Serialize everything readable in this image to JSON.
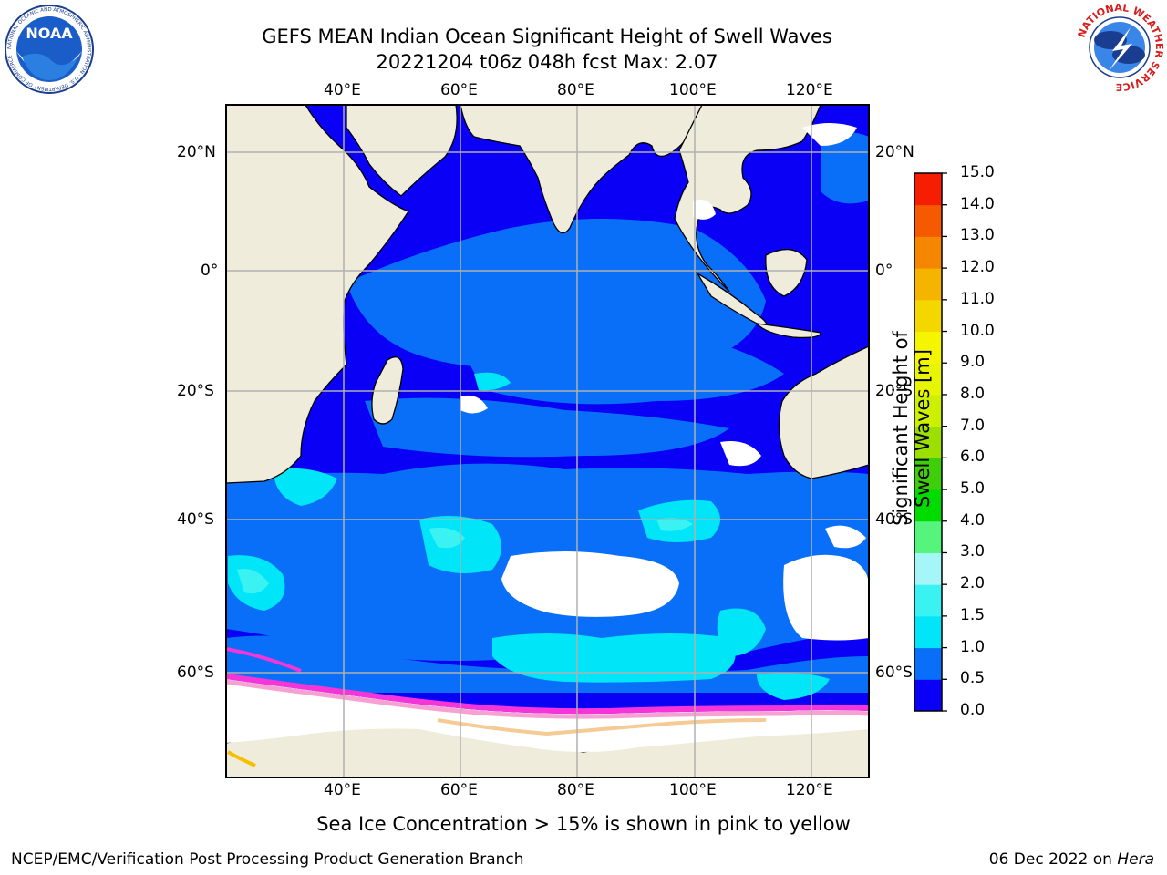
{
  "header": {
    "title_line1": "GEFS MEAN Indian Ocean Significant Height of Swell Waves",
    "title_line2": "20221204 t06z 048h fcst   Max: 2.07"
  },
  "logos": {
    "noaa": {
      "text": "NOAA",
      "ring_text": "NATIONAL OCEANIC AND ATMOSPHERIC ADMINISTRATION · U.S. DEPARTMENT OF COMMERCE"
    },
    "nws": {
      "ring_text": "NATIONAL WEATHER SERVICE"
    }
  },
  "map": {
    "lon_labels": [
      "40°E",
      "60°E",
      "80°E",
      "100°E",
      "120°E"
    ],
    "lat_labels": [
      "20°N",
      "0°",
      "20°S",
      "40°S",
      "60°S"
    ],
    "grid": true
  },
  "colorbar": {
    "label": "Significant Height of Swell Waves [m]",
    "ticks": [
      "0.0",
      "0.5",
      "1.0",
      "1.5",
      "2.0",
      "3.0",
      "4.0",
      "5.0",
      "6.0",
      "7.0",
      "8.0",
      "9.0",
      "10.0",
      "11.0",
      "12.0",
      "13.0",
      "14.0",
      "15.0"
    ],
    "colors": [
      "#0a00f5",
      "#0a6ff8",
      "#00e5f7",
      "#39f2f1",
      "#a5f7f7",
      "#55f57d",
      "#00dc00",
      "#3fce0a",
      "#9be000",
      "#cdf000",
      "#e8f500",
      "#f5f500",
      "#f5d700",
      "#f5b400",
      "#f58700",
      "#f55a00",
      "#f51e00"
    ]
  },
  "notes": {
    "sea_ice": "Sea Ice Concentration > 15% is shown in pink to yellow",
    "footer_left": "NCEP/EMC/Verification Post Processing Product Generation Branch",
    "footer_date": "06 Dec 2022 on ",
    "footer_machine": "Hera"
  }
}
